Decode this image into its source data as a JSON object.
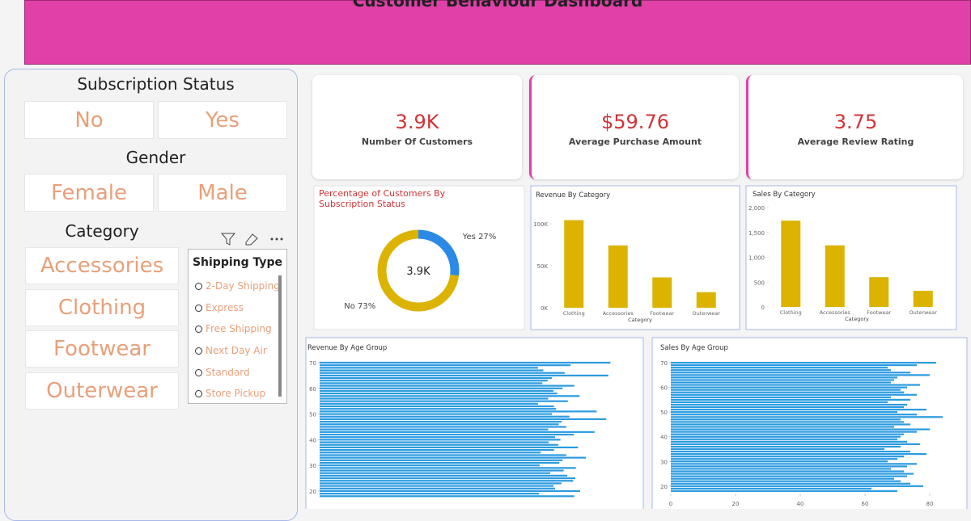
{
  "header": {
    "title": "Customer Behaviour Dashboard"
  },
  "slicers": {
    "subscription": {
      "title": "Subscription Status",
      "options": [
        "No",
        "Yes"
      ]
    },
    "gender": {
      "title": "Gender",
      "options": [
        "Female",
        "Male"
      ]
    },
    "category": {
      "title": "Category",
      "options": [
        "Accessories",
        "Clothing",
        "Footwear",
        "Outerwear"
      ]
    },
    "shipping_type": {
      "title": "Shipping Type",
      "options": [
        "2-Day Shipping",
        "Express",
        "Free Shipping",
        "Next Day Air",
        "Standard",
        "Store Pickup"
      ]
    }
  },
  "kpis": [
    {
      "value": "3.9K",
      "label": "Number Of Customers"
    },
    {
      "value": "$59.76",
      "label": "Average Purchase Amount"
    },
    {
      "value": "3.75",
      "label": "Average Review Rating"
    }
  ],
  "chart_data": [
    {
      "type": "pie",
      "title": "Percentage of Customers By Subscription Status",
      "center_label": "3.9K",
      "categories": [
        "Yes",
        "No"
      ],
      "values": [
        27,
        73
      ],
      "value_labels": [
        "Yes 27%",
        "No 73%"
      ],
      "colors": [
        "#2b8ae6",
        "#dcb300"
      ]
    },
    {
      "type": "bar",
      "title": "Revenue By Category",
      "x_label": "Category",
      "categories": [
        "Clothing",
        "Accessories",
        "Footwear",
        "Outerwear"
      ],
      "values": [
        104264,
        74200,
        36093,
        18524
      ],
      "color": "#dcb300",
      "ylim": [
        0,
        110000
      ],
      "yticks": [
        {
          "value": 0,
          "label": "0K"
        },
        {
          "value": 50000,
          "label": "50K"
        },
        {
          "value": 100000,
          "label": "100K"
        }
      ]
    },
    {
      "type": "bar",
      "title": "Sales By Category",
      "x_label": "Category",
      "categories": [
        "Clothing",
        "Accessories",
        "Footwear",
        "Outerwear"
      ],
      "values": [
        1737,
        1240,
        599,
        324
      ],
      "color": "#dcb300",
      "ylim": [
        0,
        2000
      ],
      "yticks": [
        0,
        500,
        {
          "value": 1000,
          "label": "1,000"
        },
        {
          "value": 1500,
          "label": "1,500"
        },
        {
          "value": 2000,
          "label": "2,000"
        }
      ]
    },
    {
      "type": "barh",
      "title": "Revenue By Age Group",
      "color": "#2b9be0",
      "y": [
        18,
        19,
        20,
        21,
        22,
        23,
        24,
        25,
        26,
        27,
        28,
        29,
        30,
        31,
        32,
        33,
        34,
        35,
        36,
        37,
        38,
        39,
        40,
        41,
        42,
        43,
        44,
        45,
        46,
        47,
        48,
        49,
        50,
        51,
        52,
        53,
        54,
        55,
        56,
        57,
        58,
        59,
        60,
        61,
        62,
        63,
        64,
        65,
        66,
        67,
        68,
        69,
        70
      ],
      "values": [
        4780,
        4120,
        4890,
        4420,
        4390,
        4540,
        4760,
        4800,
        4650,
        4330,
        4580,
        4810,
        4130,
        4500,
        4560,
        5000,
        4630,
        4150,
        4400,
        4850,
        4480,
        4300,
        4520,
        4420,
        4770,
        5160,
        4290,
        4630,
        4490,
        4540,
        5380,
        4690,
        4360,
        5200,
        4440,
        4400,
        4100,
        4660,
        4290,
        4880,
        4460,
        4390,
        4560,
        4780,
        4180,
        4280,
        4360,
        5420,
        4600,
        4200,
        4100,
        4710,
        5460
      ],
      "xlim": [
        0,
        6000
      ],
      "ylim": [
        17,
        71
      ],
      "yticks": [
        20,
        30,
        40,
        50,
        60,
        70
      ]
    },
    {
      "type": "barh",
      "title": "Sales By Age Group",
      "color": "#2b9be0",
      "y": [
        18,
        19,
        20,
        21,
        22,
        23,
        24,
        25,
        26,
        27,
        28,
        29,
        30,
        31,
        32,
        33,
        34,
        35,
        36,
        37,
        38,
        39,
        40,
        41,
        42,
        43,
        44,
        45,
        46,
        47,
        48,
        49,
        50,
        51,
        52,
        53,
        54,
        55,
        56,
        57,
        58,
        59,
        60,
        61,
        62,
        63,
        64,
        65,
        66,
        67,
        68,
        69,
        70
      ],
      "values": [
        70,
        62,
        78,
        74,
        71,
        69,
        73,
        75,
        72,
        68,
        73,
        76,
        67,
        70,
        72,
        79,
        74,
        66,
        71,
        77,
        73,
        70,
        71,
        72,
        76,
        80,
        69,
        74,
        72,
        71,
        84,
        76,
        70,
        79,
        72,
        73,
        67,
        74,
        68,
        76,
        72,
        71,
        73,
        77,
        68,
        69,
        70,
        80,
        74,
        68,
        67,
        76,
        82
      ],
      "xlim": [
        0,
        90
      ],
      "xticks": [
        0,
        20,
        40,
        60,
        80
      ],
      "ylim": [
        17,
        71
      ],
      "yticks": [
        20,
        30,
        40,
        50,
        60,
        70
      ]
    }
  ]
}
